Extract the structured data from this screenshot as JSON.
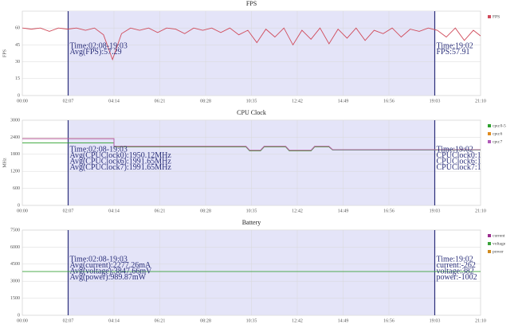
{
  "chart_data": [
    {
      "type": "line",
      "title": "FPS",
      "y_label": "FPS",
      "x": [
        0,
        25,
        50,
        75,
        100,
        125,
        150,
        175,
        200,
        225,
        250,
        275,
        300,
        325,
        350,
        375,
        400,
        425,
        450,
        475,
        500,
        525,
        550,
        575,
        600,
        625,
        650,
        675,
        700,
        725,
        750,
        775,
        800,
        825,
        850,
        875,
        900,
        925,
        950,
        975,
        1000,
        1025,
        1050,
        1075,
        1100,
        1125,
        1150,
        1175,
        1200,
        1225,
        1250,
        1270
      ],
      "series": [
        {
          "name": "FPS",
          "color": "#d04a5a",
          "values": [
            60,
            59,
            60,
            57,
            60,
            59,
            60,
            58,
            60,
            54,
            32,
            55,
            60,
            58,
            60,
            56,
            60,
            59,
            55,
            60,
            58,
            60,
            56,
            60,
            54,
            58,
            47,
            59,
            52,
            60,
            45,
            58,
            50,
            60,
            46,
            59,
            51,
            60,
            49,
            58,
            55,
            60,
            52,
            59,
            57,
            60,
            58,
            52,
            60,
            49,
            58,
            53
          ]
        }
      ],
      "xlim": [
        0,
        1270
      ],
      "xticks": [
        {
          "value": 0,
          "label": "00:00"
        },
        {
          "value": 127,
          "label": "02:07"
        },
        {
          "value": 254,
          "label": "04:14"
        },
        {
          "value": 381,
          "label": "06:21"
        },
        {
          "value": 508,
          "label": "08:28"
        },
        {
          "value": 635,
          "label": "10:35"
        },
        {
          "value": 762,
          "label": "12:42"
        },
        {
          "value": 889,
          "label": "14:49"
        },
        {
          "value": 1016,
          "label": "16:56"
        },
        {
          "value": 1143,
          "label": "19:03"
        },
        {
          "value": 1270,
          "label": "21:10"
        }
      ],
      "ylim": [
        0,
        75
      ],
      "yticks": [
        0,
        15,
        30,
        45,
        60
      ],
      "grid": true,
      "highlight_range": [
        127,
        1143
      ],
      "left_notes": [
        "Time:02:08-19:03",
        "Avg(FPS):57.29"
      ],
      "right_notes": [
        "Time:19:02",
        "FPS:57.91"
      ]
    },
    {
      "type": "line",
      "title": "CPU Clock",
      "y_label": "MHz",
      "x": [
        0,
        254,
        254,
        620,
        630,
        660,
        670,
        730,
        740,
        800,
        810,
        850,
        860,
        1270
      ],
      "series": [
        {
          "name": "cpu:0-5",
          "color": "#2ca02c",
          "values": [
            2200,
            2200,
            2060,
            2060,
            1920,
            1920,
            2060,
            2060,
            1920,
            1920,
            2060,
            2060,
            1950,
            1950
          ]
        },
        {
          "name": "cpu:6",
          "color": "#e08a1e",
          "values": [
            2350,
            2350,
            2080,
            2080,
            1940,
            1940,
            2080,
            2080,
            1940,
            1940,
            2080,
            2080,
            1960,
            1960
          ]
        },
        {
          "name": "cpu:7",
          "color": "#b05ab8",
          "values": [
            2350,
            2350,
            2080,
            2080,
            1940,
            1940,
            2080,
            2080,
            1940,
            1940,
            2080,
            2080,
            1960,
            1960
          ]
        }
      ],
      "xlim": [
        0,
        1270
      ],
      "xticks": [
        {
          "value": 0,
          "label": "00:00"
        },
        {
          "value": 127,
          "label": "02:07"
        },
        {
          "value": 254,
          "label": "04:14"
        },
        {
          "value": 381,
          "label": "06:21"
        },
        {
          "value": 508,
          "label": "08:28"
        },
        {
          "value": 635,
          "label": "10:35"
        },
        {
          "value": 762,
          "label": "12:42"
        },
        {
          "value": 889,
          "label": "14:49"
        },
        {
          "value": 1016,
          "label": "16:56"
        },
        {
          "value": 1143,
          "label": "19:03"
        },
        {
          "value": 1270,
          "label": "21:10"
        }
      ],
      "ylim": [
        0,
        3000
      ],
      "yticks": [
        0,
        600,
        1200,
        1800,
        2400,
        3000
      ],
      "grid": true,
      "highlight_range": [
        127,
        1143
      ],
      "left_notes": [
        "Time:02:08-19:03",
        "Avg(CPUClock0):1950.12MHz",
        "Avg(CPUClock6):1991.65MHz",
        "Avg(CPUClock7):1991.65MHz"
      ],
      "right_notes": [
        "Time:19:02",
        "CPUClock0:1",
        "CPUClock6:1",
        "CPUClock7:1"
      ]
    },
    {
      "type": "line",
      "title": "Battery",
      "x": [
        0,
        1270
      ],
      "series": [
        {
          "name": "current",
          "color": "#9b2d8f",
          "values": [
            null,
            null
          ]
        },
        {
          "name": "voltage",
          "color": "#3aa23a",
          "values": [
            3850,
            3850
          ]
        },
        {
          "name": "power",
          "color": "#d08a1e",
          "values": [
            null,
            null
          ]
        }
      ],
      "xlim": [
        0,
        1270
      ],
      "xticks": [
        {
          "value": 0,
          "label": "00:00"
        },
        {
          "value": 127,
          "label": "02:07"
        },
        {
          "value": 254,
          "label": "04:14"
        },
        {
          "value": 381,
          "label": "06:21"
        },
        {
          "value": 508,
          "label": "08:28"
        },
        {
          "value": 635,
          "label": "10:35"
        },
        {
          "value": 762,
          "label": "12:42"
        },
        {
          "value": 889,
          "label": "14:49"
        },
        {
          "value": 1016,
          "label": "16:56"
        },
        {
          "value": 1143,
          "label": "19:03"
        },
        {
          "value": 1270,
          "label": "21:10"
        }
      ],
      "ylim": [
        0,
        7500
      ],
      "yticks": [
        0,
        1500,
        3000,
        4500,
        6000,
        7500
      ],
      "grid": true,
      "highlight_range": [
        127,
        1143
      ],
      "left_notes": [
        "Time:02:08-19:03",
        "Avg(current):2277.26mA",
        "Avg(voltage):3847.66mV",
        "Avg(power):989.87mW"
      ],
      "right_notes": [
        "Time:19:02",
        "current:-262",
        "voltage:382",
        "power:-1002"
      ]
    }
  ]
}
